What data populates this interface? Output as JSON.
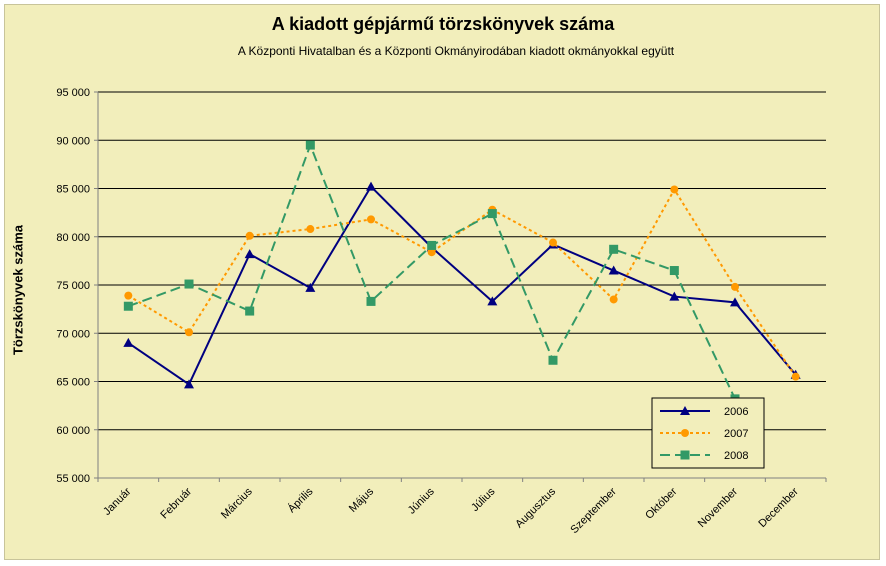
{
  "chart_data": {
    "type": "line",
    "title": "A  kiadott gépjármű  törzskönyvek száma",
    "subtitle": "A Központi Hivatalban és a Központi Okmányirodában kiadott okmányokkal együtt",
    "xlabel": "",
    "ylabel": "Törzskönyvek száma",
    "ylim": [
      55000,
      95000
    ],
    "yticks": [
      55000,
      60000,
      65000,
      70000,
      75000,
      80000,
      85000,
      90000,
      95000
    ],
    "ytick_labels": [
      "55 000",
      "60 000",
      "65 000",
      "70 000",
      "75 000",
      "80 000",
      "85 000",
      "90 000",
      "95 000"
    ],
    "grid": "horizontal",
    "legend_position": "bottom-right",
    "categories": [
      "Január",
      "Február",
      "Március",
      "Április",
      "Május",
      "Június",
      "Július",
      "Augusztus",
      "Szeptember",
      "Október",
      "November",
      "December"
    ],
    "series": [
      {
        "name": "2006",
        "color": "#000080",
        "marker": "triangle",
        "dash": "solid",
        "values": [
          69000,
          64700,
          78200,
          74700,
          85200,
          78900,
          73300,
          79200,
          76500,
          73800,
          73200,
          65700
        ]
      },
      {
        "name": "2007",
        "color": "#ff9900",
        "marker": "circle",
        "dash": "dotted",
        "values": [
          73900,
          70100,
          80100,
          80800,
          81800,
          78400,
          82800,
          79400,
          73500,
          84900,
          74800,
          65500
        ]
      },
      {
        "name": "2008",
        "color": "#339966",
        "marker": "square",
        "dash": "dashed",
        "values": [
          72800,
          75100,
          72300,
          89500,
          73300,
          79100,
          82400,
          67200,
          78700,
          76500,
          63200,
          null
        ]
      }
    ]
  }
}
